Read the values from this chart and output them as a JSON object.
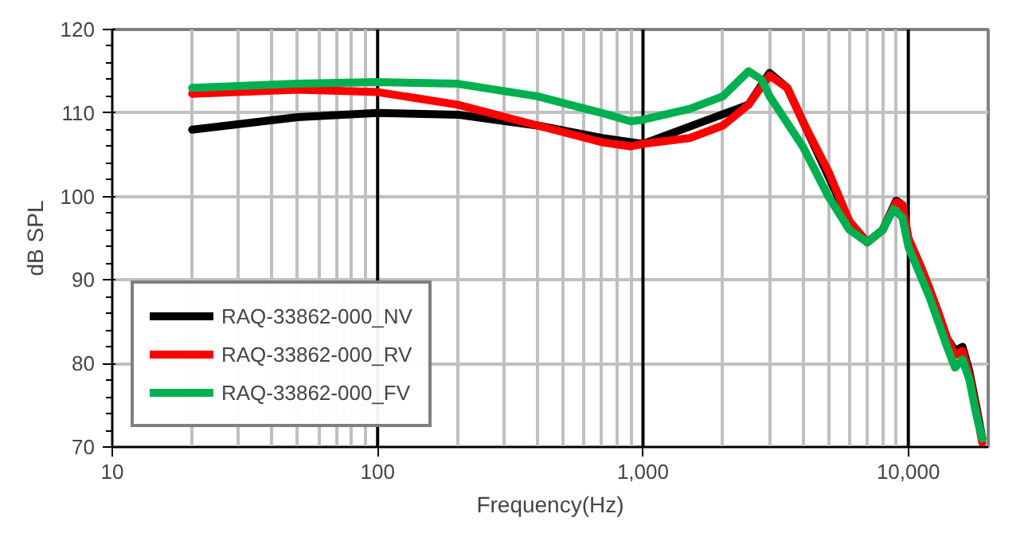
{
  "chart_data": {
    "type": "line",
    "xlabel": "Frequency(Hz)",
    "ylabel": "dB SPL",
    "log": "x",
    "xlim": [
      10,
      20000
    ],
    "ylim": [
      70,
      120
    ],
    "xticks": [
      10,
      100,
      {
        "value": 1000,
        "label": "1,000"
      },
      {
        "value": 10000,
        "label": "10,000"
      }
    ],
    "yticks": [
      70,
      80,
      90,
      100,
      110,
      120
    ],
    "grid": true,
    "legend": "bottom left",
    "marker": "none",
    "line_style": "solid",
    "series": [
      {
        "name": "RAQ-33862-000_NV",
        "color": "#000000",
        "x": [
          20,
          50,
          100,
          200,
          400,
          700,
          1000,
          2500,
          3000,
          3500,
          6000,
          7000,
          8000,
          9000,
          9500,
          10000,
          11000,
          12000,
          13000,
          14000,
          15000,
          16000,
          17000,
          18000,
          19000
        ],
        "values": [
          108,
          109.5,
          110,
          109.8,
          108.5,
          107,
          106.3,
          111,
          114.8,
          113,
          97,
          94.5,
          96,
          99.5,
          99,
          95,
          92,
          89,
          86,
          83,
          81.5,
          82,
          79,
          75,
          71
        ]
      },
      {
        "name": "RAQ-33862-000_RV",
        "color": "#ff0000",
        "x": [
          20,
          50,
          100,
          200,
          400,
          700,
          900,
          1000,
          1500,
          2000,
          2500,
          3000,
          3500,
          4000,
          5000,
          6000,
          7000,
          8000,
          9000,
          9500,
          10000,
          11000,
          12000,
          13000,
          14000,
          15000,
          16000,
          17000,
          18000,
          19000
        ],
        "values": [
          112.3,
          112.8,
          112.5,
          111,
          108.5,
          106.5,
          106,
          106.3,
          107,
          108.5,
          111,
          114.5,
          113,
          109,
          103,
          97,
          94.5,
          96,
          99.3,
          99,
          95,
          92,
          89,
          86,
          83,
          81,
          81.5,
          78.5,
          74.5,
          70.5
        ]
      },
      {
        "name": "RAQ-33862-000_FV",
        "color": "#00b050",
        "x": [
          20,
          50,
          100,
          200,
          400,
          700,
          900,
          1000,
          1500,
          2000,
          2500,
          2800,
          3000,
          4000,
          5000,
          6000,
          7000,
          8000,
          8800,
          9500,
          10000,
          12000,
          14000,
          15000,
          16000,
          17000,
          18000,
          19000
        ],
        "values": [
          113,
          113.5,
          113.7,
          113.5,
          112,
          110,
          109,
          109.2,
          110.5,
          112,
          115,
          114,
          112,
          106,
          100,
          96,
          94.5,
          96,
          98.5,
          97.5,
          94,
          88,
          82,
          79.5,
          80.5,
          78,
          74,
          71
        ]
      }
    ]
  }
}
